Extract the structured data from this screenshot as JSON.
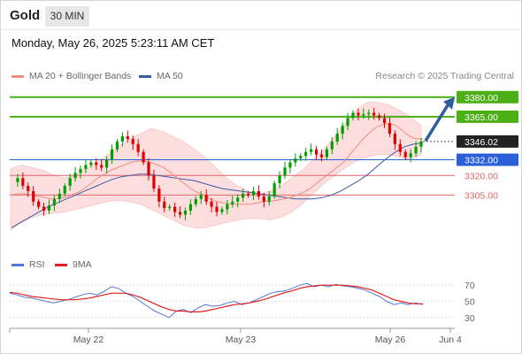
{
  "header": {
    "title": "Gold",
    "timeframe": "30 MIN",
    "timestamp": "Monday, May 26, 2025 5:23:11 AM CET"
  },
  "legend": {
    "ma20_label": "MA 20 + Bollinger Bands",
    "ma50_label": "MA 50",
    "credit": "Research © 2025 Trading Central",
    "rsi_label": "RSI",
    "rsi_ma_label": "9MA"
  },
  "colors": {
    "ma20": "#f28b82",
    "ma50": "#3d5aa8",
    "bands": "#fbd3d3",
    "up": "#00a000",
    "down": "#e00000",
    "green_level": "#4caf15",
    "blue_level": "#2a5fd8",
    "red_level": "#e06666",
    "rsi": "#5577d9",
    "rsi_ma": "#e02020"
  },
  "chart_data": [
    {
      "type": "candlestick",
      "title": "Gold 30 MIN",
      "ylim": [
        3270,
        3390
      ],
      "x_ticks": [
        "May 22",
        "May 23",
        "May 26",
        "Jun 4"
      ],
      "levels": [
        {
          "label": "3380.00",
          "value": 3380.0,
          "kind": "resistance"
        },
        {
          "label": "3365.00",
          "value": 3365.0,
          "kind": "resistance"
        },
        {
          "label": "3346.02",
          "value": 3346.02,
          "kind": "last"
        },
        {
          "label": "3332.00",
          "value": 3332.0,
          "kind": "pivot"
        },
        {
          "label": "3320.00",
          "value": 3320.0,
          "kind": "support"
        },
        {
          "label": "3305.00",
          "value": 3305.0,
          "kind": "support"
        }
      ],
      "close_path": [
        3315,
        3318,
        3312,
        3308,
        3300,
        3296,
        3293,
        3297,
        3302,
        3306,
        3312,
        3318,
        3322,
        3325,
        3328,
        3330,
        3328,
        3326,
        3332,
        3340,
        3346,
        3350,
        3348,
        3344,
        3338,
        3330,
        3320,
        3310,
        3300,
        3295,
        3296,
        3292,
        3290,
        3293,
        3298,
        3302,
        3305,
        3300,
        3296,
        3292,
        3294,
        3298,
        3300,
        3303,
        3306,
        3305,
        3308,
        3304,
        3300,
        3304,
        3314,
        3320,
        3326,
        3330,
        3333,
        3335,
        3338,
        3340,
        3336,
        3334,
        3340,
        3346,
        3352,
        3358,
        3364,
        3368,
        3366,
        3367,
        3368,
        3366,
        3364,
        3360,
        3352,
        3344,
        3338,
        3334,
        3337,
        3342,
        3346
      ],
      "ma20": [
        3305,
        3306,
        3306,
        3305,
        3304,
        3303,
        3302,
        3302,
        3303,
        3305,
        3307,
        3310,
        3314,
        3318,
        3321,
        3324,
        3326,
        3328,
        3330,
        3331,
        3331,
        3330,
        3328,
        3326,
        3322,
        3318,
        3314,
        3310,
        3307,
        3305,
        3302,
        3300,
        3299,
        3298,
        3298,
        3298,
        3298,
        3299,
        3300,
        3300,
        3301,
        3302,
        3303,
        3305,
        3307,
        3310,
        3314,
        3318,
        3322,
        3326,
        3330,
        3336,
        3342,
        3348,
        3353,
        3357,
        3359,
        3360,
        3358,
        3354,
        3350,
        3348,
        3348
      ],
      "ma50": [
        3280,
        3284,
        3288,
        3292,
        3296,
        3299,
        3302,
        3305,
        3308,
        3311,
        3314,
        3317,
        3319,
        3320,
        3321,
        3321,
        3320,
        3319,
        3318,
        3317,
        3316,
        3314,
        3312,
        3310,
        3309,
        3308,
        3307,
        3306,
        3305,
        3304,
        3303,
        3302,
        3302,
        3302,
        3303,
        3305,
        3308,
        3312,
        3316,
        3321,
        3327,
        3333,
        3338,
        3342,
        3344,
        3345
      ],
      "bb_upper": [
        3325,
        3328,
        3326,
        3324,
        3320,
        3318,
        3320,
        3325,
        3330,
        3336,
        3342,
        3348,
        3352,
        3356,
        3354,
        3350,
        3346,
        3340,
        3334,
        3326,
        3318,
        3312,
        3308,
        3306,
        3308,
        3312,
        3318,
        3324,
        3332,
        3340,
        3350,
        3360,
        3370,
        3376,
        3376,
        3374,
        3370,
        3365,
        3358
      ],
      "bb_lower": [
        3278,
        3284,
        3288,
        3290,
        3291,
        3292,
        3294,
        3296,
        3298,
        3300,
        3301,
        3300,
        3298,
        3294,
        3290,
        3286,
        3282,
        3280,
        3280,
        3282,
        3284,
        3286,
        3287,
        3287,
        3286,
        3288,
        3292,
        3298,
        3306,
        3314,
        3320,
        3326,
        3331,
        3334,
        3336,
        3336,
        3334,
        3332,
        3336
      ]
    },
    {
      "type": "line",
      "title": "RSI",
      "ylim": [
        20,
        80
      ],
      "y_ticks": [
        70,
        50,
        30
      ],
      "series": [
        {
          "name": "RSI",
          "values": [
            60,
            58,
            55,
            54,
            52,
            50,
            48,
            50,
            52,
            55,
            58,
            60,
            58,
            62,
            68,
            66,
            60,
            56,
            50,
            44,
            38,
            34,
            30,
            38,
            40,
            36,
            42,
            46,
            44,
            45,
            48,
            50,
            46,
            48,
            52,
            56,
            60,
            62,
            63,
            66,
            70,
            72,
            68,
            70,
            68,
            71,
            69,
            68,
            66,
            64,
            60,
            56,
            50,
            46,
            48,
            46,
            48,
            46
          ]
        },
        {
          "name": "9MA",
          "values": [
            61,
            60,
            58,
            56,
            55,
            54,
            53,
            52,
            52,
            52,
            53,
            54,
            56,
            58,
            60,
            60,
            60,
            58,
            55,
            51,
            47,
            43,
            40,
            38,
            38,
            37,
            37,
            38,
            40,
            42,
            44,
            46,
            47,
            48,
            50,
            52,
            55,
            58,
            61,
            63,
            66,
            68,
            69,
            70,
            70,
            70,
            70,
            69,
            68,
            66,
            64,
            60,
            56,
            52,
            50,
            48,
            47,
            47
          ]
        }
      ]
    }
  ]
}
